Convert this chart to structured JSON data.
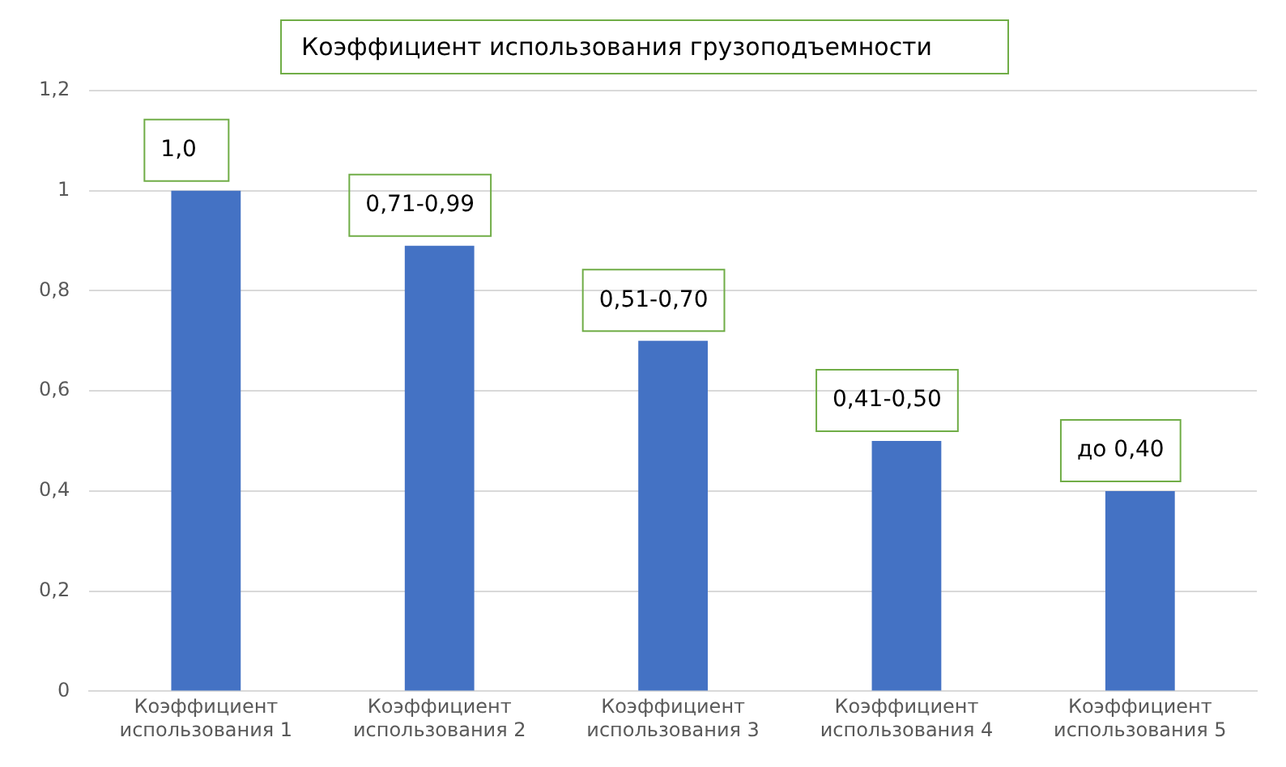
{
  "chart_data": {
    "type": "bar",
    "title": "Коэффициент использования грузоподъемности",
    "categories": [
      "Коэффициент использования 1",
      "Коэффициент использования 2",
      "Коэффициент использования 3",
      "Коэффициент использования 4",
      "Коэффициент использования 5"
    ],
    "values": [
      1.0,
      0.89,
      0.7,
      0.5,
      0.4
    ],
    "value_labels": [
      "1,0",
      "0,71-0,99",
      "0,51-0,70",
      "0,41-0,50",
      "до 0,40"
    ],
    "color": "#4472c4",
    "ylim": [
      0,
      1.2
    ],
    "yticks": [
      0,
      {
        "value": 0.2,
        "label": "0,2"
      },
      {
        "value": 0.4,
        "label": "0,4"
      },
      {
        "value": 0.6,
        "label": "0,6"
      },
      {
        "value": 0.8,
        "label": "0,8"
      },
      1,
      {
        "value": 1.2,
        "label": "1,2"
      }
    ],
    "grid": "y",
    "legend": false
  }
}
